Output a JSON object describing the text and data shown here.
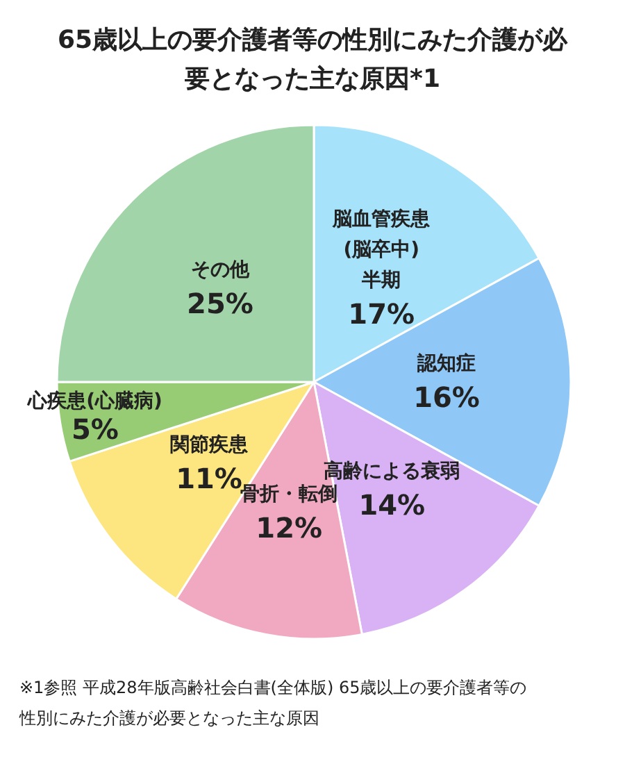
{
  "chart_data": {
    "type": "pie",
    "title": "65歳以上の要介護者等の性別にみた介護が必要となった主な原因*1",
    "categories": [
      "脳血管疾患\n(脳卒中)\n半期",
      "認知症",
      "高齢による衰弱",
      "骨折・転倒",
      "関節疾患",
      "心疾患(心臓病)",
      "その他"
    ],
    "values": [
      17,
      16,
      14,
      12,
      11,
      5,
      25
    ],
    "value_labels": [
      "17%",
      "16%",
      "14%",
      "12%",
      "11%",
      "5%",
      "25%"
    ],
    "colors": [
      "#a6e3fb",
      "#8fc7f7",
      "#d8b2f4",
      "#f1a9c2",
      "#fde67f",
      "#98cc74",
      "#a2d4a9"
    ],
    "annotations": [
      "※1参照 平成28年版高齢社会白書(全体版) 65歳以上の要介護者等の性別にみた介護が必要となった主な原因"
    ]
  }
}
